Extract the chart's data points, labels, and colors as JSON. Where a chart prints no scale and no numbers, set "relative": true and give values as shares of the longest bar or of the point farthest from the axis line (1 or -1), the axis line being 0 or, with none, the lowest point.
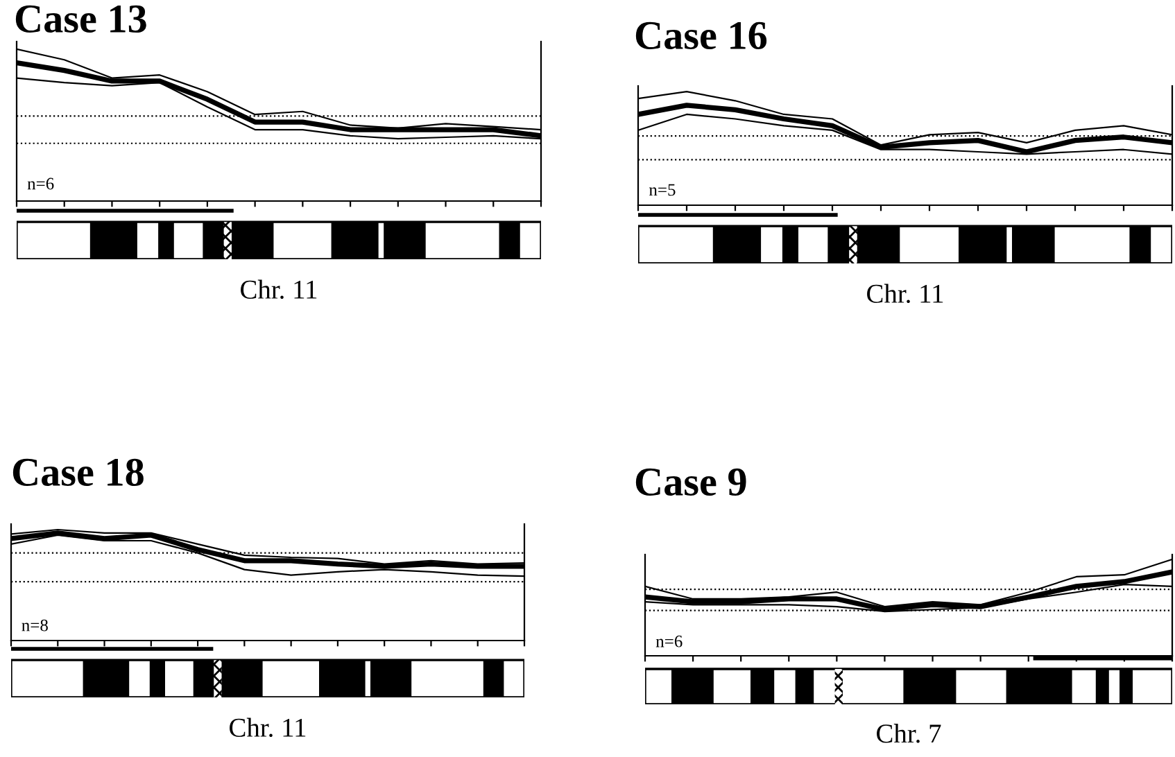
{
  "chart_data": [
    {
      "type": "line",
      "title": "Case 13",
      "xlabel": "Chr. 11",
      "relative": true,
      "categories": [
        null,
        null,
        null,
        null,
        null,
        null,
        null,
        null,
        null,
        null,
        null,
        null
      ],
      "annotations": [
        "n=6"
      ],
      "grid": false,
      "legend": false,
      "marker": "none",
      "line_style": "solid",
      "series": [
        {
          "color": "#000000",
          "values": [
            0.91,
            0.86,
            0.79,
            0.79,
            0.67,
            0.52,
            0.52,
            0.47,
            0.47,
            0.47,
            0.47,
            0.43
          ]
        },
        {
          "color": "#000000",
          "values": [
            1,
            0.93,
            0.81,
            0.83,
            0.72,
            0.57,
            0.59,
            0.5,
            0.48,
            0.51,
            0.49,
            0.47
          ]
        },
        {
          "color": "#000000",
          "values": [
            0.81,
            0.78,
            0.76,
            0.78,
            0.62,
            0.47,
            0.47,
            0.43,
            0.41,
            0.42,
            0.43,
            0.41
          ]
        }
      ],
      "ref_lines": [
        {
          "axis": "y",
          "value": 0.56,
          "line_style": "dotted"
        },
        {
          "axis": "y",
          "value": 0.38,
          "line_style": "dotted"
        }
      ]
    },
    {
      "type": "line",
      "title": "Case 16",
      "xlabel": "Chr. 11",
      "relative": true,
      "categories": [
        null,
        null,
        null,
        null,
        null,
        null,
        null,
        null,
        null,
        null,
        null,
        null
      ],
      "annotations": [
        "n=5"
      ],
      "grid": false,
      "legend": false,
      "marker": "none",
      "line_style": "solid",
      "series": [
        {
          "color": "#000000",
          "values": [
            0.8,
            0.88,
            0.84,
            0.76,
            0.7,
            0.51,
            0.55,
            0.57,
            0.47,
            0.57,
            0.6,
            0.55
          ]
        },
        {
          "color": "#000000",
          "values": [
            0.94,
            1,
            0.92,
            0.8,
            0.76,
            0.53,
            0.62,
            0.64,
            0.55,
            0.66,
            0.7,
            0.62
          ]
        },
        {
          "color": "#000000",
          "values": [
            0.66,
            0.8,
            0.76,
            0.7,
            0.66,
            0.49,
            0.49,
            0.47,
            0.45,
            0.47,
            0.49,
            0.45
          ]
        }
      ],
      "ref_lines": [
        {
          "axis": "y",
          "value": 0.61,
          "line_style": "dotted"
        },
        {
          "axis": "y",
          "value": 0.4,
          "line_style": "dotted"
        }
      ]
    },
    {
      "type": "line",
      "title": "Case 18",
      "xlabel": "Chr. 11",
      "relative": true,
      "categories": [
        null,
        null,
        null,
        null,
        null,
        null,
        null,
        null,
        null,
        null,
        null,
        null
      ],
      "annotations": [
        "n=8"
      ],
      "grid": false,
      "legend": false,
      "marker": "none",
      "line_style": "solid",
      "series": [
        {
          "color": "#000000",
          "values": [
            0.92,
            0.97,
            0.92,
            0.95,
            0.82,
            0.72,
            0.72,
            0.69,
            0.67,
            0.69,
            0.67,
            0.67
          ]
        },
        {
          "color": "#000000",
          "values": [
            0.96,
            1,
            0.97,
            0.97,
            0.87,
            0.77,
            0.75,
            0.74,
            0.69,
            0.72,
            0.69,
            0.7
          ]
        },
        {
          "color": "#000000",
          "values": [
            0.87,
            0.95,
            0.9,
            0.9,
            0.79,
            0.64,
            0.59,
            0.62,
            0.64,
            0.62,
            0.59,
            0.58
          ]
        }
      ],
      "ref_lines": [
        {
          "axis": "y",
          "value": 0.79,
          "line_style": "dotted"
        },
        {
          "axis": "y",
          "value": 0.53,
          "line_style": "dotted"
        }
      ]
    },
    {
      "type": "line",
      "title": "Case 9",
      "xlabel": "Chr. 7",
      "relative": true,
      "categories": [
        null,
        null,
        null,
        null,
        null,
        null,
        null,
        null,
        null,
        null,
        null,
        null
      ],
      "annotations": [
        "n=6"
      ],
      "grid": false,
      "legend": false,
      "marker": "none",
      "line_style": "solid",
      "series": [
        {
          "color": "#000000",
          "values": [
            0.61,
            0.56,
            0.56,
            0.59,
            0.59,
            0.48,
            0.53,
            0.51,
            0.61,
            0.72,
            0.77,
            0.87
          ]
        },
        {
          "color": "#000000",
          "values": [
            0.72,
            0.59,
            0.59,
            0.61,
            0.66,
            0.51,
            0.56,
            0.53,
            0.66,
            0.82,
            0.84,
            1
          ]
        },
        {
          "color": "#000000",
          "values": [
            0.56,
            0.53,
            0.53,
            0.53,
            0.51,
            0.46,
            0.48,
            0.5,
            0.59,
            0.66,
            0.74,
            0.72
          ]
        }
      ],
      "ref_lines": [
        {
          "axis": "y",
          "value": 0.69,
          "line_style": "dotted"
        },
        {
          "axis": "y",
          "value": 0.47,
          "line_style": "dotted"
        }
      ]
    }
  ]
}
